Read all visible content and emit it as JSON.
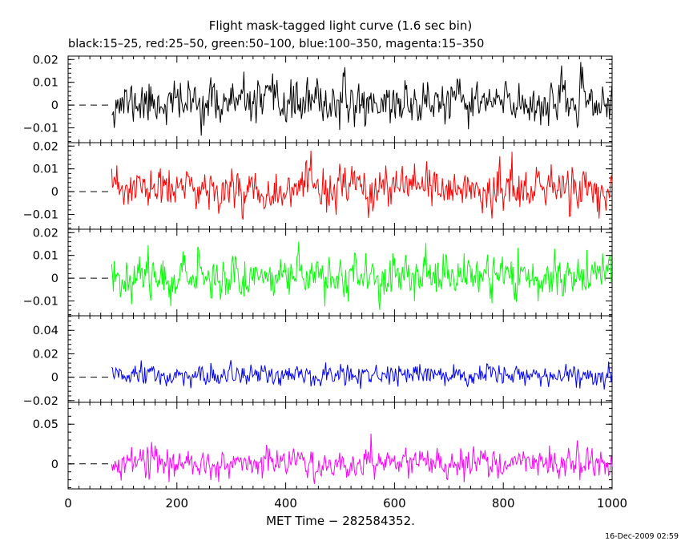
{
  "chart_data": {
    "type": "line",
    "title": "Flight mask-tagged light curve (1.6 sec bin)",
    "subtitle": "black:15–25, red:25–50, green:50–100, blue:100–350, magenta:15–350",
    "xlabel": "MET Time − 282584352.",
    "timestamp": "16-Dec-2009 02:59",
    "xlim": [
      0,
      1000
    ],
    "x_ticks": [
      "0",
      "200",
      "400",
      "600",
      "800",
      "1000"
    ],
    "data_start": 80,
    "data_end": 1000,
    "bin_seconds": 1.6,
    "grid": false,
    "panels": [
      {
        "name": "black:15–25",
        "color": "#000000",
        "ylim": [
          -0.0165,
          0.0215
        ],
        "y_ticks": [
          {
            "label": "0.02",
            "v": 0.02
          },
          {
            "label": "0.01",
            "v": 0.01
          },
          {
            "label": "0",
            "v": 0
          },
          {
            "label": "−0.01",
            "v": -0.01
          }
        ],
        "mean": 0.001,
        "noise": 0.0048,
        "seed": 11
      },
      {
        "name": "red:25–50",
        "color": "#ff0000",
        "ylim": [
          -0.0165,
          0.0215
        ],
        "y_ticks": [
          {
            "label": "0.02",
            "v": 0.02
          },
          {
            "label": "0.01",
            "v": 0.01
          },
          {
            "label": "0",
            "v": 0
          },
          {
            "label": "−0.01",
            "v": -0.01
          }
        ],
        "mean": 0.001,
        "noise": 0.0048,
        "seed": 23
      },
      {
        "name": "green:50–100",
        "color": "#00ff00",
        "ylim": [
          -0.0165,
          0.0215
        ],
        "y_ticks": [
          {
            "label": "0.02",
            "v": 0.02
          },
          {
            "label": "0.01",
            "v": 0.01
          },
          {
            "label": "0",
            "v": 0
          },
          {
            "label": "−0.01",
            "v": -0.01
          }
        ],
        "mean": 0.001,
        "noise": 0.0048,
        "seed": 37
      },
      {
        "name": "blue:100–350",
        "color": "#0000ff",
        "ylim": [
          -0.0215,
          0.0525
        ],
        "y_ticks": [
          {
            "label": "0.04",
            "v": 0.04
          },
          {
            "label": "0.02",
            "v": 0.02
          },
          {
            "label": "0",
            "v": 0
          },
          {
            "label": "−0.02",
            "v": -0.02
          }
        ],
        "mean": 0.001,
        "noise": 0.0045,
        "seed": 51
      },
      {
        "name": "magenta:15–350",
        "color": "#ff00ff",
        "ylim": [
          -0.0315,
          0.0775
        ],
        "y_ticks": [
          {
            "label": "0.05",
            "v": 0.05
          },
          {
            "label": "0",
            "v": 0
          }
        ],
        "mean": 0.001,
        "noise": 0.0095,
        "seed": 67
      }
    ]
  }
}
